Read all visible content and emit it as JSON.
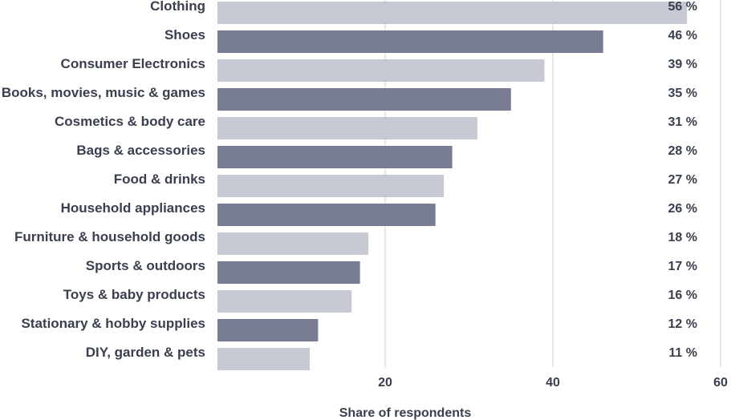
{
  "chart_data": {
    "type": "bar",
    "orientation": "horizontal",
    "categories": [
      "Clothing",
      "Shoes",
      "Consumer Electronics",
      "Books, movies, music & games",
      "Cosmetics & body care",
      "Bags & accessories",
      "Food & drinks",
      "Household appliances",
      "Furniture & household goods",
      "Sports & outdoors",
      "Toys & baby products",
      "Stationary & hobby supplies",
      "DIY, garden & pets"
    ],
    "values": [
      56,
      46,
      39,
      35,
      31,
      28,
      27,
      26,
      18,
      17,
      16,
      12,
      11
    ],
    "value_labels": [
      "56 %",
      "46 %",
      "39 %",
      "35 %",
      "31 %",
      "28 %",
      "27 %",
      "26 %",
      "18 %",
      "17 %",
      "16 %",
      "12 %",
      "11 %"
    ],
    "xlabel": "Share of respondents",
    "ylabel": "",
    "xlim": [
      0,
      60
    ],
    "x_ticks": [
      20,
      40,
      60
    ],
    "grid": true,
    "colors": [
      "#c6c8d2",
      "#787d93"
    ]
  }
}
